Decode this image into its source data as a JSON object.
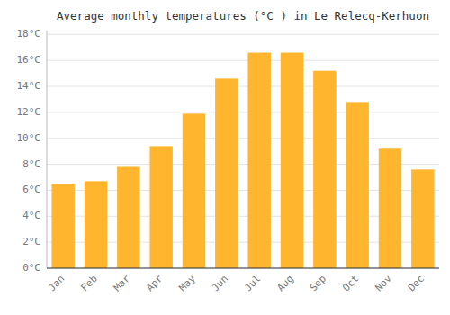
{
  "chart_data": {
    "type": "bar",
    "title": "Average monthly temperatures (°C ) in Le Relecq-Kerhuon",
    "categories": [
      "Jan",
      "Feb",
      "Mar",
      "Apr",
      "May",
      "Jun",
      "Jul",
      "Aug",
      "Sep",
      "Oct",
      "Nov",
      "Dec"
    ],
    "values": [
      6.5,
      6.7,
      7.8,
      9.4,
      11.9,
      14.6,
      16.6,
      16.6,
      15.2,
      12.8,
      9.2,
      7.6
    ],
    "color": "#FFB52E",
    "ylim": [
      0,
      18.3
    ],
    "yticks": [
      {
        "value": 0,
        "label": "0°C"
      },
      {
        "value": 2,
        "label": "2°C"
      },
      {
        "value": 4,
        "label": "4°C"
      },
      {
        "value": 6,
        "label": "6°C"
      },
      {
        "value": 8,
        "label": "8°C"
      },
      {
        "value": 10,
        "label": "10°C"
      },
      {
        "value": 12,
        "label": "12°C"
      },
      {
        "value": 14,
        "label": "14°C"
      },
      {
        "value": 16,
        "label": "16°C"
      },
      {
        "value": 18,
        "label": "18°C"
      }
    ],
    "grid": true
  }
}
